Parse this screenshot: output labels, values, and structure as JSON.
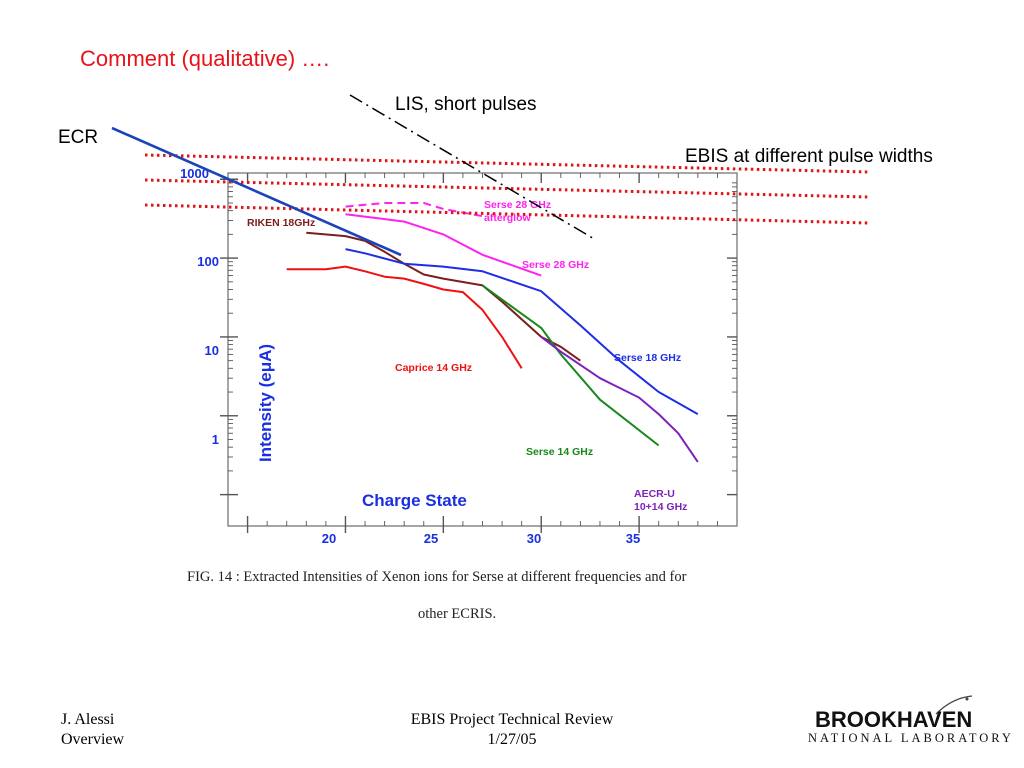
{
  "slide": {
    "title": "Comment (qualitative) ….",
    "annotations": {
      "lis": "LIS, short pulses",
      "ecr": "ECR",
      "ebis": "EBIS at different pulse widths"
    }
  },
  "figure_caption": {
    "line1": "FIG. 14 : Extracted Intensities of Xenon ions for Serse at different frequencies and for",
    "line2": "other ECRIS."
  },
  "footer": {
    "author": "J. Alessi",
    "section": "Overview",
    "event": "EBIS Project Technical Review",
    "date": "1/27/05"
  },
  "logo": {
    "name": "BROOKHAVEN",
    "subtitle": "NATIONAL LABORATORY"
  },
  "chart_data": {
    "type": "line",
    "xlabel": "Charge State",
    "ylabel": "Intensity (eμA)",
    "xlim": [
      14,
      40
    ],
    "ylim": [
      0.04,
      1200
    ],
    "y_scale": "log",
    "x_ticks": [
      "20",
      "25",
      "30",
      "35"
    ],
    "y_ticks": [
      "1000",
      "100",
      "10",
      "1"
    ],
    "y_tick_values": [
      1000,
      100,
      10,
      1
    ],
    "grid": false,
    "colors": {
      "axis_labels": "#1a2fe0",
      "ecr_line": "#1a45b8",
      "ebis_lines": "#e01414",
      "lis_line": "#000000"
    },
    "series": [
      {
        "name": "RIKEN 18GHz",
        "color": "#7a1e1e",
        "x": [
          18,
          20,
          21,
          22,
          23,
          24,
          25,
          27,
          28,
          30,
          31,
          32
        ],
        "y": [
          210,
          190,
          165,
          120,
          85,
          62,
          55,
          45,
          28,
          10,
          7.5,
          5
        ]
      },
      {
        "name": "Serse 28 GHz",
        "color": "#ff22ee",
        "x": [
          20,
          23,
          25,
          27,
          30
        ],
        "y": [
          360,
          290,
          200,
          110,
          60
        ]
      },
      {
        "name": "Serse 28 GHz afterglow",
        "color": "#ff22ee",
        "dashed": true,
        "x": [
          20,
          22,
          24,
          25,
          27
        ],
        "y": [
          450,
          500,
          500,
          420,
          340
        ]
      },
      {
        "name": "Caprice 14 GHz",
        "color": "#ee1111",
        "x": [
          17,
          19,
          20,
          21,
          22,
          23,
          24,
          25,
          26,
          27,
          28,
          29
        ],
        "y": [
          72,
          72,
          78,
          68,
          58,
          55,
          47,
          40,
          37,
          22,
          10,
          4
        ]
      },
      {
        "name": "Serse 18 GHz",
        "color": "#1d2ee6",
        "x": [
          20,
          21,
          23,
          25,
          27,
          30,
          32,
          34,
          36,
          38
        ],
        "y": [
          130,
          115,
          85,
          78,
          68,
          38,
          14,
          5,
          2,
          1.05
        ]
      },
      {
        "name": "Serse 14 GHz",
        "color": "#17881c",
        "x": [
          27,
          30,
          31,
          33,
          36
        ],
        "y": [
          45,
          13,
          6,
          1.6,
          0.42
        ]
      },
      {
        "name": "AECR-U 10+14 GHz",
        "color": "#7a22bb",
        "x": [
          30,
          31,
          33,
          35,
          36,
          37,
          38
        ],
        "y": [
          10,
          6.5,
          3,
          1.7,
          1.05,
          0.6,
          0.26
        ]
      }
    ],
    "series_labels": [
      {
        "text": "RIKEN 18GHz",
        "color": "#7a1e1e"
      },
      {
        "text": "Serse 28 GHz",
        "color": "#ff22ee"
      },
      {
        "text": "afterglow",
        "color": "#ff22ee"
      },
      {
        "text": "Serse 28 GHz",
        "color": "#ff22ee"
      },
      {
        "text": "Caprice 14 GHz",
        "color": "#ee1111"
      },
      {
        "text": "Serse 18 GHz",
        "color": "#1d2ee6"
      },
      {
        "text": "Serse 14 GHz",
        "color": "#17881c"
      },
      {
        "text": "AECR-U",
        "color": "#7a22bb"
      },
      {
        "text": "10+14 GHz",
        "color": "#7a22bb"
      }
    ]
  }
}
